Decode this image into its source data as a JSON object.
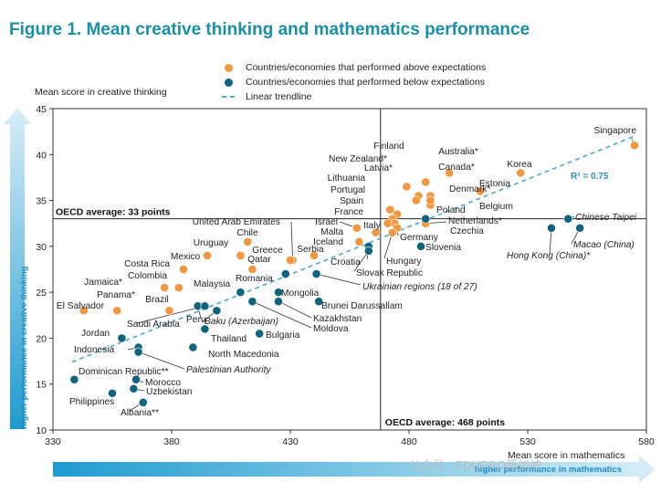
{
  "title": "Figure 1. Mean creative thinking and mathematics performance",
  "legend": [
    {
      "label": "Countries/economies that performed above expectations",
      "color": "#f0973f",
      "kind": "dot"
    },
    {
      "label": "Countries/economies that performed below expectations",
      "color": "#11647e",
      "kind": "dot"
    },
    {
      "label": "Linear trendline",
      "color": "#4fa9c9",
      "kind": "dash"
    }
  ],
  "ylabel": "Mean score in creative thinking",
  "xlabel": "Mean score in mathematics",
  "y_arrow_text": "higher performance in creative thinking",
  "x_arrow_text": "higher performance in mathematics",
  "watermark": "公众号 · EDUPRO新加坡",
  "chart_data": {
    "type": "scatter",
    "xlim": [
      330,
      580
    ],
    "ylim": [
      10,
      45
    ],
    "x_ticks": [
      "330",
      "380",
      "430",
      "480",
      "530",
      "580"
    ],
    "y_ticks": [
      "10",
      "15",
      "20",
      "25",
      "30",
      "35",
      "40",
      "45"
    ],
    "grid": false,
    "legend_position": "top",
    "trendline": {
      "label": "R² = 0.75",
      "x": [
        338,
        575
      ],
      "y": [
        17.4,
        42.0
      ]
    },
    "reference_lines": [
      {
        "axis": "y",
        "value": 33,
        "label": "OECD average: 33 points"
      },
      {
        "axis": "x",
        "value": 468,
        "label": "OECD average: 468 points"
      }
    ],
    "points": [
      {
        "label": "Singapore",
        "x": 575,
        "y": 41,
        "group": "above"
      },
      {
        "label": "Korea",
        "x": 527,
        "y": 38,
        "group": "above"
      },
      {
        "label": "Canada*",
        "x": 497,
        "y": 38,
        "group": "above"
      },
      {
        "label": "Estonia",
        "x": 510,
        "y": 36,
        "group": "above"
      },
      {
        "label": "Australia*",
        "x": 487,
        "y": 37,
        "group": "above"
      },
      {
        "label": "Finland",
        "x": 484,
        "y": 35.5,
        "group": "above"
      },
      {
        "label": "New Zealand*",
        "x": 479,
        "y": 36.5,
        "group": "above"
      },
      {
        "label": "Latvia*",
        "x": 483,
        "y": 35,
        "group": "above"
      },
      {
        "label": "Denmark*",
        "x": 489,
        "y": 35.5,
        "group": "above"
      },
      {
        "label": "Belgium",
        "x": 489,
        "y": 34.5,
        "group": "above"
      },
      {
        "label": "Poland",
        "x": 489,
        "y": 35,
        "group": "above"
      },
      {
        "label": "Lithuania",
        "x": 475,
        "y": 33.5,
        "group": "above"
      },
      {
        "label": "Portugal",
        "x": 472,
        "y": 34,
        "group": "above"
      },
      {
        "label": "Spain",
        "x": 473,
        "y": 33,
        "group": "above"
      },
      {
        "label": "France",
        "x": 474,
        "y": 32.5,
        "group": "above"
      },
      {
        "label": "Israel",
        "x": 458,
        "y": 32,
        "group": "above"
      },
      {
        "label": "Italy",
        "x": 471,
        "y": 32.5,
        "group": "above"
      },
      {
        "label": "Germany",
        "x": 475,
        "y": 32,
        "group": "above"
      },
      {
        "label": "Netherlands*",
        "x": 487,
        "y": 32.5,
        "group": "above"
      },
      {
        "label": "Malta",
        "x": 466,
        "y": 31.5,
        "group": "above"
      },
      {
        "label": "Iceland",
        "x": 459,
        "y": 30.5,
        "group": "above"
      },
      {
        "label": "Hungary",
        "x": 473,
        "y": 31.5,
        "group": "above"
      },
      {
        "label": "United Arab Emirates",
        "x": 431,
        "y": 28.5,
        "group": "above"
      },
      {
        "label": "Chile",
        "x": 412,
        "y": 30.5,
        "group": "above"
      },
      {
        "label": "Serbia",
        "x": 440,
        "y": 29,
        "group": "above"
      },
      {
        "label": "Greece",
        "x": 430,
        "y": 28.5,
        "group": "above"
      },
      {
        "label": "Uruguay",
        "x": 409,
        "y": 29,
        "group": "above"
      },
      {
        "label": "Qatar",
        "x": 414,
        "y": 27.5,
        "group": "above"
      },
      {
        "label": "Mexico",
        "x": 395,
        "y": 29,
        "group": "above"
      },
      {
        "label": "Costa Rica",
        "x": 385,
        "y": 27.5,
        "group": "above"
      },
      {
        "label": "Colombia",
        "x": 383,
        "y": 25.5,
        "group": "above"
      },
      {
        "label": "Jamaica*",
        "x": 377,
        "y": 25.5,
        "group": "above"
      },
      {
        "label": "Panama*",
        "x": 357,
        "y": 23,
        "group": "above"
      },
      {
        "label": "Brazil",
        "x": 379,
        "y": 23,
        "group": "above"
      },
      {
        "label": "El Salvador",
        "x": 343,
        "y": 23,
        "group": "above"
      },
      {
        "label": "Chinese Taipei",
        "x": 547,
        "y": 33,
        "group": "below"
      },
      {
        "label": "Macao (China)",
        "x": 552,
        "y": 32,
        "group": "below"
      },
      {
        "label": "Hong Kong (China)*",
        "x": 540,
        "y": 32,
        "group": "below"
      },
      {
        "label": "Czechia",
        "x": 487,
        "y": 33,
        "group": "below"
      },
      {
        "label": "Slovenia",
        "x": 485,
        "y": 30,
        "group": "below"
      },
      {
        "label": "Croatia",
        "x": 463,
        "y": 30,
        "group": "below"
      },
      {
        "label": "Slovak Republic",
        "x": 463,
        "y": 29.5,
        "group": "below"
      },
      {
        "label": "Ukrainian regions (18 of 27)",
        "x": 441,
        "y": 27,
        "group": "below"
      },
      {
        "label": "Romania",
        "x": 428,
        "y": 27,
        "group": "below"
      },
      {
        "label": "Malaysia",
        "x": 409,
        "y": 25,
        "group": "below"
      },
      {
        "label": "Mongolia",
        "x": 425,
        "y": 25,
        "group": "below"
      },
      {
        "label": "Brunei Darussallam",
        "x": 442,
        "y": 24,
        "group": "below"
      },
      {
        "label": "Kazakhstan",
        "x": 425,
        "y": 24,
        "group": "below"
      },
      {
        "label": "Moldova",
        "x": 414,
        "y": 24,
        "group": "below"
      },
      {
        "label": "Peru",
        "x": 391,
        "y": 23.5,
        "group": "below"
      },
      {
        "label": "Saudi Arabia",
        "x": 394,
        "y": 23.5,
        "group": "below"
      },
      {
        "label": "Baku (Azerbaijan)",
        "x": 399,
        "y": 23,
        "group": "below"
      },
      {
        "label": "Thailand",
        "x": 394,
        "y": 21,
        "group": "below"
      },
      {
        "label": "Bulgaria",
        "x": 417,
        "y": 20.5,
        "group": "below"
      },
      {
        "label": "Jordan",
        "x": 359,
        "y": 20,
        "group": "below"
      },
      {
        "label": "Indonesia",
        "x": 366,
        "y": 19,
        "group": "below"
      },
      {
        "label": "Palestinian Authority",
        "x": 366,
        "y": 18.5,
        "group": "below"
      },
      {
        "label": "North Macedonia",
        "x": 389,
        "y": 19,
        "group": "below"
      },
      {
        "label": "Dominican Republic**",
        "x": 339,
        "y": 15.5,
        "group": "below"
      },
      {
        "label": "Morocco",
        "x": 365,
        "y": 15.5,
        "group": "below"
      },
      {
        "label": "Uzbekistan",
        "x": 364,
        "y": 14.5,
        "group": "below"
      },
      {
        "label": "Philippines",
        "x": 355,
        "y": 14,
        "group": "below"
      },
      {
        "label": "Albania**",
        "x": 368,
        "y": 13,
        "group": "below"
      }
    ]
  }
}
